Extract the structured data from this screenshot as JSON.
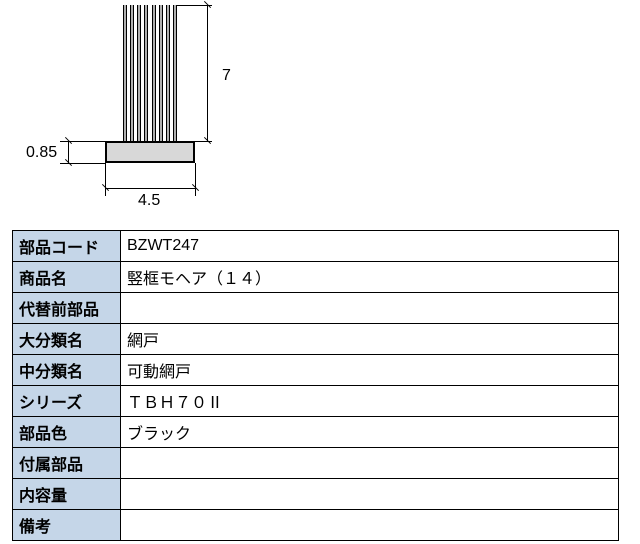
{
  "diagram": {
    "dim_right": "7",
    "dim_left": "0.85",
    "dim_bottom": "4.5",
    "strand_count": 8,
    "strand_color": "#b0b0b0",
    "base_color": "#d8d8d8",
    "line_color": "#000000"
  },
  "table": {
    "header_bg": "#c5d6e8",
    "rows": [
      {
        "label": "部品コード",
        "value": "BZWT247"
      },
      {
        "label": "商品名",
        "value": "竪框モヘア（１４）"
      },
      {
        "label": "代替前部品",
        "value": ""
      },
      {
        "label": "大分類名",
        "value": "網戸"
      },
      {
        "label": "中分類名",
        "value": "可動網戸"
      },
      {
        "label": "シリーズ",
        "value": "ＴＢＨ７０Ⅱ"
      },
      {
        "label": "部品色",
        "value": "ブラック"
      },
      {
        "label": "付属部品",
        "value": ""
      },
      {
        "label": "内容量",
        "value": ""
      },
      {
        "label": "備考",
        "value": ""
      }
    ]
  }
}
